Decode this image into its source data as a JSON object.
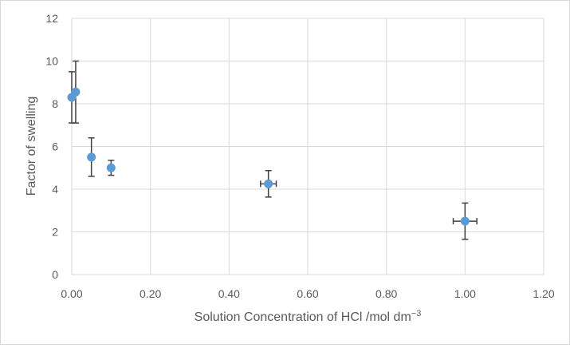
{
  "chart_data": {
    "type": "scatter",
    "title": "",
    "xlabel": "Solution Concentration of HCl /mol dm",
    "xlabel_superscript": "−3",
    "ylabel": "Factor of swelling",
    "xlim": [
      0,
      1.2
    ],
    "ylim": [
      0,
      12
    ],
    "x_ticks": [
      "0.00",
      "0.20",
      "0.40",
      "0.60",
      "0.80",
      "1.00",
      "1.20"
    ],
    "y_ticks": [
      "0",
      "2",
      "4",
      "6",
      "8",
      "10",
      "12"
    ],
    "grid": true,
    "legend": "none",
    "series": [
      {
        "color": "#5b9bd5",
        "points": [
          {
            "x": 0.0,
            "y": 8.3,
            "y_err": 1.2,
            "x_err": 0
          },
          {
            "x": 0.01,
            "y": 8.55,
            "y_err": 1.45,
            "x_err": 0
          },
          {
            "x": 0.05,
            "y": 5.5,
            "y_err": 0.9,
            "x_err": 0
          },
          {
            "x": 0.1,
            "y": 5.0,
            "y_err": 0.35,
            "x_err": 0
          },
          {
            "x": 0.5,
            "y": 4.25,
            "y_err": 0.62,
            "x_err": 0.02
          },
          {
            "x": 1.0,
            "y": 2.5,
            "y_err": 0.85,
            "x_err": 0.03
          }
        ]
      }
    ]
  }
}
